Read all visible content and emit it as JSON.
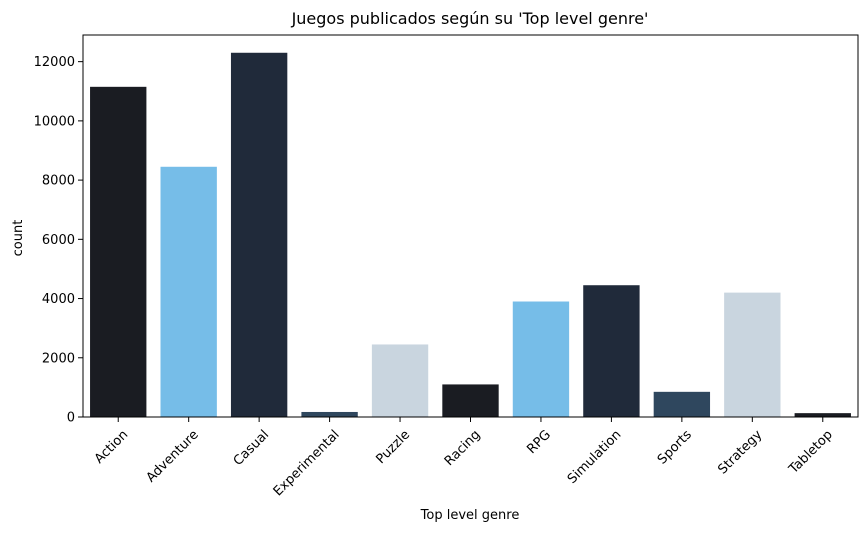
{
  "chart_data": {
    "type": "bar",
    "title": "Juegos publicados según su 'Top level genre'",
    "xlabel": "Top level genre",
    "ylabel": "count",
    "ylim": [
      0,
      12900
    ],
    "yticks": [
      0,
      2000,
      4000,
      6000,
      8000,
      10000,
      12000
    ],
    "grid": false,
    "categories": [
      "Action",
      "Adventure",
      "Casual",
      "Experimental",
      "Puzzle",
      "Racing",
      "RPG",
      "Simulation",
      "Sports",
      "Strategy",
      "Tabletop"
    ],
    "values": [
      11150,
      8450,
      12300,
      170,
      2450,
      1100,
      3900,
      4450,
      850,
      4200,
      130
    ],
    "colors": [
      "#1a1c22",
      "#76bde8",
      "#202a3a",
      "#2f475e",
      "#c9d5df",
      "#1a1c22",
      "#76bde8",
      "#202a3a",
      "#2f475e",
      "#c9d5df",
      "#1a1c22"
    ]
  }
}
